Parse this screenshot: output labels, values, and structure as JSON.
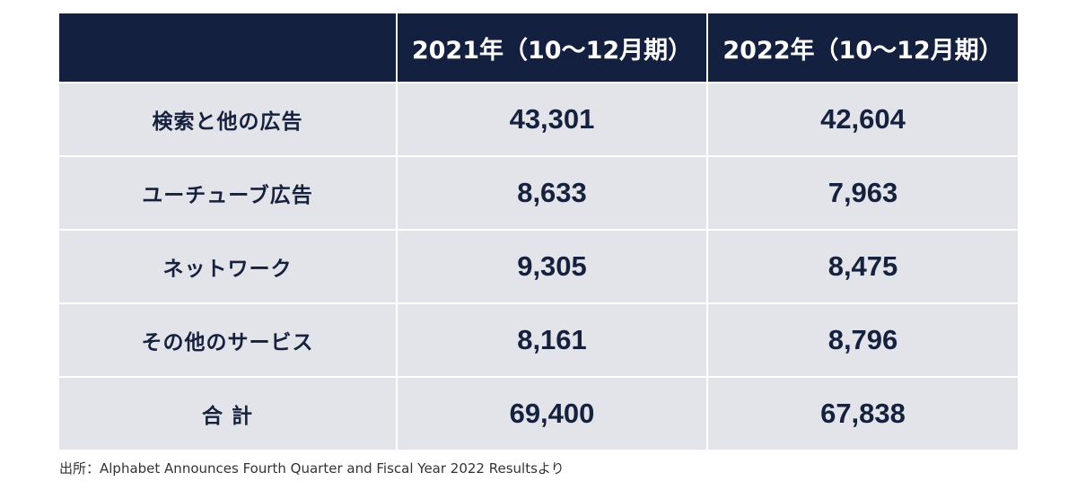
{
  "table": {
    "headers": [
      "",
      "2021年（10〜12月期）",
      "2022年（10〜12月期）"
    ],
    "rows": [
      {
        "label": "検索と他の広告",
        "y2021": "43,301",
        "y2022": "42,604"
      },
      {
        "label": "ユーチューブ広告",
        "y2021": "8,633",
        "y2022": "7,963"
      },
      {
        "label": "ネットワーク",
        "y2021": "9,305",
        "y2022": "8,475"
      },
      {
        "label": "その他のサービス",
        "y2021": "8,161",
        "y2022": "8,796"
      },
      {
        "label": "合 計",
        "y2021": "69,400",
        "y2022": "67,838"
      }
    ]
  },
  "colors": {
    "header_bg": "#13203f",
    "header_text": "#ffffff",
    "body_bg": "#e2e4ea",
    "body_text": "#16213e"
  },
  "source": "出所：Alphabet Announces Fourth Quarter and Fiscal Year 2022 Resultsより"
}
